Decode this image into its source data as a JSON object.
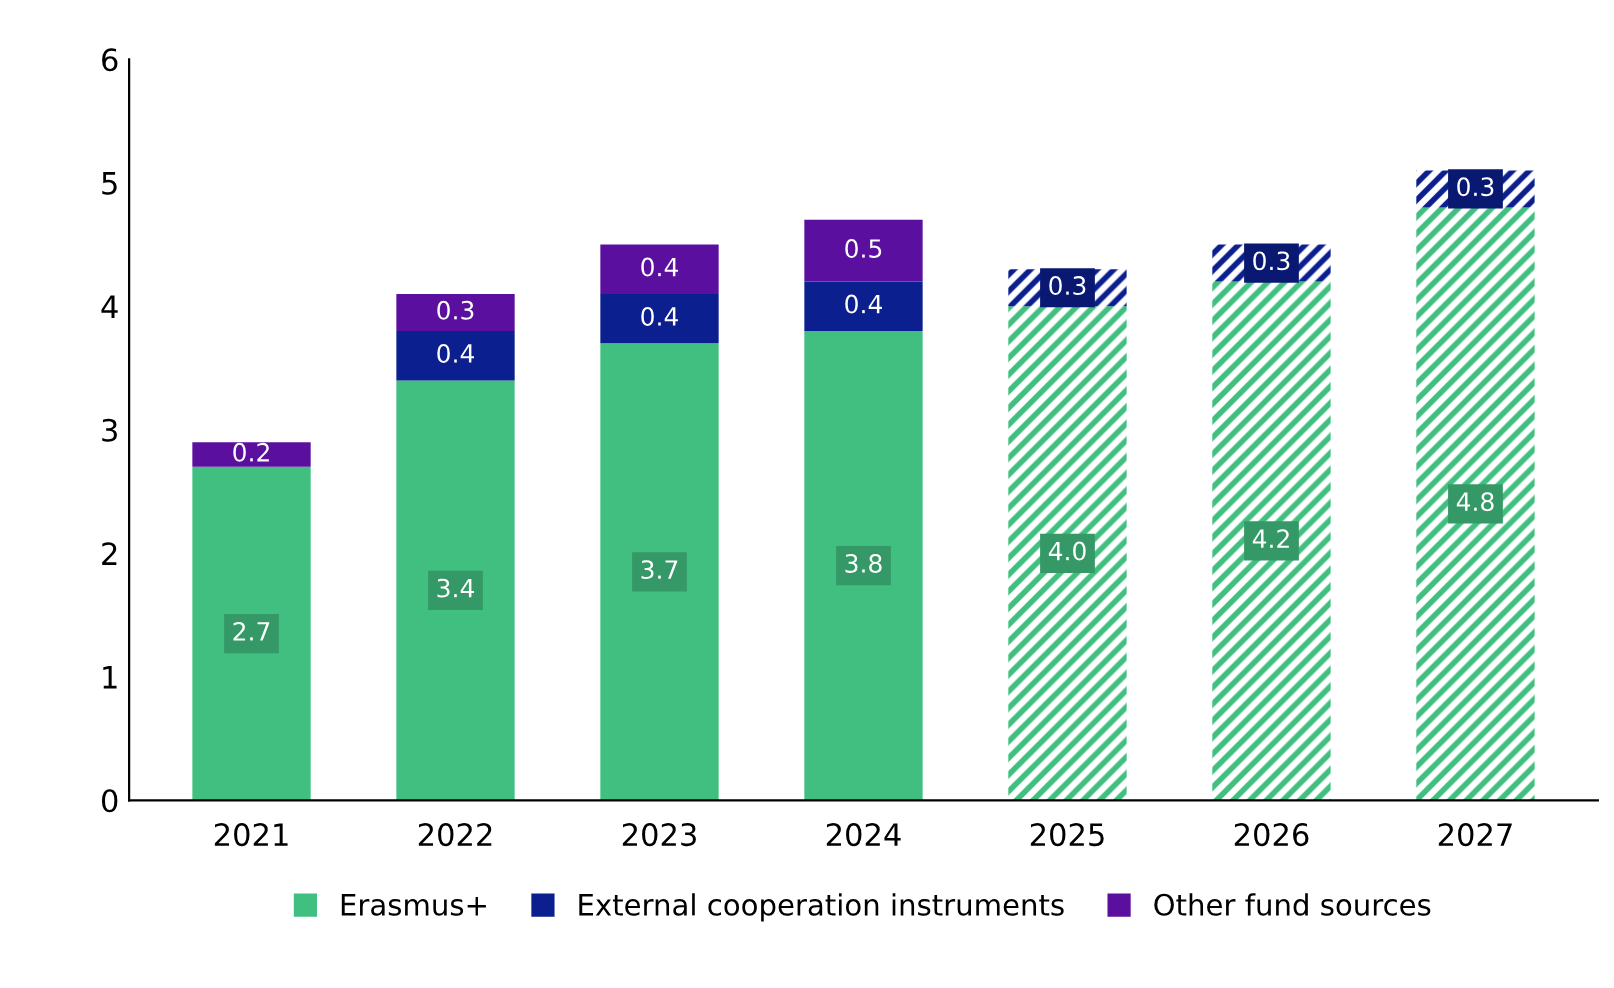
{
  "chart_data": {
    "type": "bar",
    "stacked": true,
    "categories": [
      "2021",
      "2022",
      "2023",
      "2024",
      "2025",
      "2026",
      "2027"
    ],
    "series": [
      {
        "name": "Erasmus+",
        "color": "#41bf80",
        "values": [
          2.7,
          3.4,
          3.7,
          3.8,
          4.0,
          4.2,
          4.8
        ],
        "value_labels": [
          "2.7",
          "3.4",
          "3.7",
          "3.8",
          "4.0",
          "4.2",
          "4.8"
        ]
      },
      {
        "name": "External cooperation instruments",
        "color": "#0b1f8f",
        "values": [
          null,
          0.4,
          0.4,
          0.4,
          0.3,
          0.3,
          0.3
        ],
        "value_labels": [
          null,
          "0.4",
          "0.4",
          "0.4",
          "0.3",
          "0.3",
          "0.3"
        ]
      },
      {
        "name": "Other fund sources",
        "color": "#5b0f9e",
        "values": [
          0.2,
          0.3,
          0.4,
          0.5,
          null,
          null,
          null
        ],
        "value_labels": [
          "0.2",
          "0.3",
          "0.4",
          "0.5",
          null,
          null,
          null
        ]
      }
    ],
    "ylim": [
      0,
      6
    ],
    "yticks": [
      0,
      1,
      2,
      3,
      4,
      5,
      6
    ],
    "grid": false,
    "legend": "bottom"
  }
}
